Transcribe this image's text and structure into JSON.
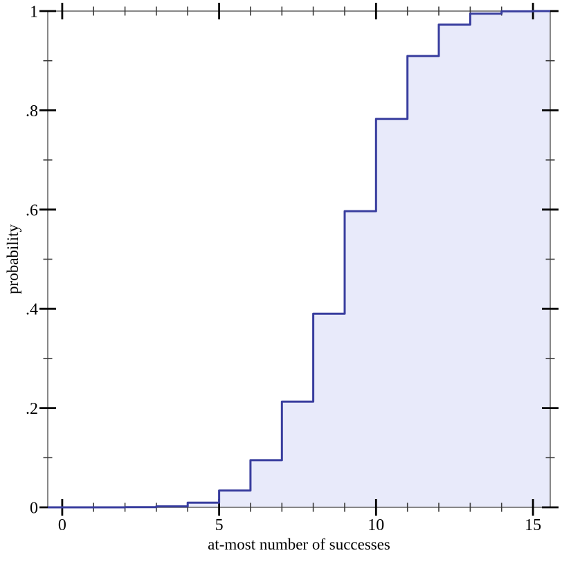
{
  "chart_data": {
    "type": "area",
    "subtype": "cdf_step_function",
    "title": "",
    "xlabel": "at-most number of successes",
    "ylabel": "probability",
    "x": [
      0,
      1,
      2,
      3,
      4,
      5,
      6,
      7,
      8,
      9,
      10,
      11,
      12,
      13,
      14,
      15
    ],
    "cdf": [
      1e-06,
      2.5e-05,
      0.000279,
      0.001928,
      0.009347,
      0.033833,
      0.095047,
      0.213101,
      0.390155,
      0.596753,
      0.782692,
      0.909467,
      0.972855,
      0.994797,
      0.999499,
      1.0
    ],
    "x_range": [
      -0.46,
      15.55
    ],
    "y_range": [
      0,
      1
    ],
    "x_ticks": {
      "major_values": [
        0,
        5,
        10,
        15
      ],
      "major_labels": [
        "0",
        "5",
        "10",
        "15"
      ],
      "minor_values": [
        1,
        2,
        3,
        4,
        6,
        7,
        8,
        9,
        11,
        12,
        13,
        14
      ]
    },
    "y_ticks": {
      "major_values": [
        0,
        0.2,
        0.4,
        0.6,
        0.8,
        1
      ],
      "major_labels": [
        "0",
        ".2",
        ".4",
        ".6",
        ".8",
        "1"
      ],
      "minor_values": [
        0.1,
        0.3,
        0.5,
        0.7,
        0.9
      ]
    },
    "grid": false,
    "legend": "none",
    "colors": {
      "line": "#383d9e",
      "fill": "#e8eafa",
      "frame": "#878787",
      "tick_major": "#000000",
      "tick_minor": "#3a3a3a",
      "text": "#000000"
    }
  }
}
